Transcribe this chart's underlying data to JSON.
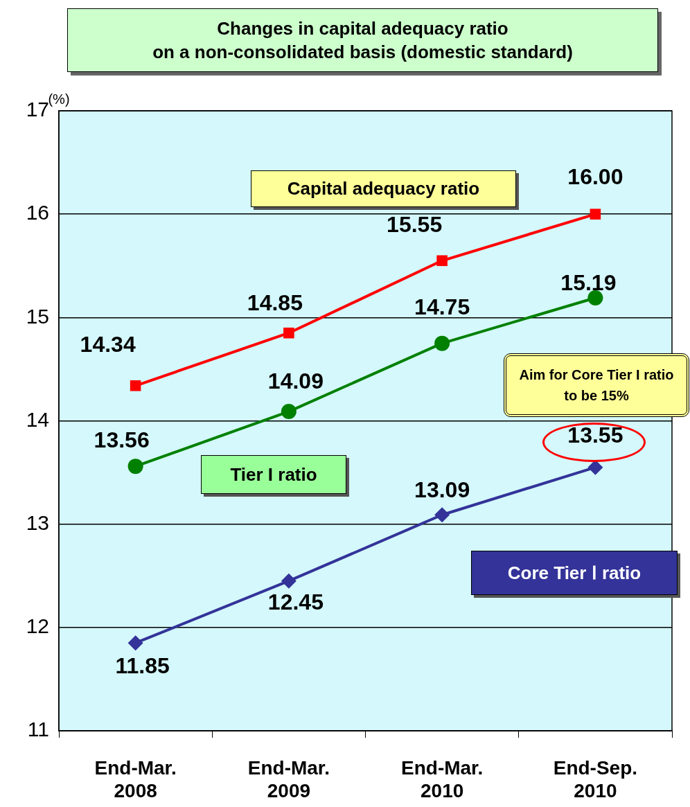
{
  "chart_data": {
    "type": "line",
    "title": "Changes in capital adequacy ratio\non a non-consolidated basis (domestic standard)",
    "ylabel": "(%)",
    "categories": [
      "End-Mar. 2008",
      "End-Mar. 2009",
      "End-Mar. 2010",
      "End-Sep. 2010"
    ],
    "series": [
      {
        "name": "Capital adequacy ratio",
        "color": "#ff0000",
        "marker": "square",
        "values": [
          14.34,
          14.85,
          15.55,
          16.0
        ]
      },
      {
        "name": "Tier I ratio",
        "color": "#008000",
        "marker": "circle",
        "values": [
          13.56,
          14.09,
          14.75,
          15.19
        ]
      },
      {
        "name": "Core Tier Ⅰ ratio",
        "color": "#333399",
        "marker": "diamond",
        "values": [
          11.85,
          12.45,
          13.09,
          13.55
        ]
      }
    ],
    "value_labels": [
      [
        "14.34",
        "14.85",
        "15.55",
        "16.00"
      ],
      [
        "13.56",
        "14.09",
        "14.75",
        "15.19"
      ],
      [
        "11.85",
        "12.45",
        "13.09",
        "13.55"
      ]
    ],
    "ylim": [
      11,
      17
    ],
    "yticks": [
      11,
      12,
      13,
      14,
      15,
      16,
      17
    ],
    "grid": "y",
    "legend": false,
    "line_style": "solid",
    "annotations": [
      "Aim for Core Tier I ratio to be 15%"
    ]
  }
}
